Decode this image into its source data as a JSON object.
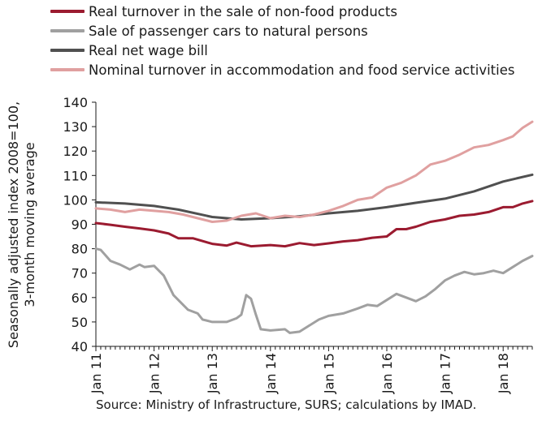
{
  "chart_data": {
    "type": "line",
    "title": "",
    "ylabel": "Seasonally adjusted index 2008=100, 3-month moving average",
    "ylabel_lines": [
      "Seasonally adjusted index 2008=100,",
      "3-month moving average"
    ],
    "xlabel": "",
    "ylim": [
      40,
      140
    ],
    "yticks": [
      40,
      50,
      60,
      70,
      80,
      90,
      100,
      110,
      120,
      130,
      140
    ],
    "x_labels": [
      "Jan 11",
      "Jan 12",
      "Jan 13",
      "Jan 14",
      "Jan 15",
      "Jan 16",
      "Jan 17",
      "Jan 18"
    ],
    "x_start": "2011-01",
    "x_end": "2018-07",
    "grid": false,
    "legend_position": "top",
    "series": [
      {
        "name": "Real turnover in the sale of non-food products",
        "color": "#9b1b30",
        "points": [
          [
            "2011-01",
            90.5
          ],
          [
            "2011-04",
            89.8
          ],
          [
            "2011-07",
            89.0
          ],
          [
            "2011-10",
            88.3
          ],
          [
            "2012-01",
            87.5
          ],
          [
            "2012-04",
            86.2
          ],
          [
            "2012-06",
            84.3
          ],
          [
            "2012-09",
            84.3
          ],
          [
            "2013-01",
            82.0
          ],
          [
            "2013-04",
            81.3
          ],
          [
            "2013-06",
            82.5
          ],
          [
            "2013-09",
            81.0
          ],
          [
            "2014-01",
            81.5
          ],
          [
            "2014-04",
            81.0
          ],
          [
            "2014-07",
            82.3
          ],
          [
            "2014-10",
            81.5
          ],
          [
            "2015-01",
            82.2
          ],
          [
            "2015-04",
            83.0
          ],
          [
            "2015-07",
            83.5
          ],
          [
            "2015-10",
            84.5
          ],
          [
            "2016-01",
            85.0
          ],
          [
            "2016-03",
            88.0
          ],
          [
            "2016-05",
            88.0
          ],
          [
            "2016-07",
            89.0
          ],
          [
            "2016-10",
            91.0
          ],
          [
            "2017-01",
            92.0
          ],
          [
            "2017-04",
            93.5
          ],
          [
            "2017-07",
            94.0
          ],
          [
            "2017-10",
            95.0
          ],
          [
            "2018-01",
            97.0
          ],
          [
            "2018-03",
            97.0
          ],
          [
            "2018-05",
            98.5
          ],
          [
            "2018-07",
            99.5
          ]
        ]
      },
      {
        "name": "Sale of passenger cars to natural persons",
        "color": "#a0a0a0",
        "points": [
          [
            "2011-01",
            80.0
          ],
          [
            "2011-02",
            79.5
          ],
          [
            "2011-04",
            75.0
          ],
          [
            "2011-06",
            73.5
          ],
          [
            "2011-08",
            71.5
          ],
          [
            "2011-10",
            73.5
          ],
          [
            "2011-11",
            72.5
          ],
          [
            "2012-01",
            73.0
          ],
          [
            "2012-03",
            69.0
          ],
          [
            "2012-05",
            61.0
          ],
          [
            "2012-08",
            55.0
          ],
          [
            "2012-10",
            53.5
          ],
          [
            "2012-11",
            51.0
          ],
          [
            "2013-01",
            50.0
          ],
          [
            "2013-04",
            50.0
          ],
          [
            "2013-06",
            51.5
          ],
          [
            "2013-07",
            53.0
          ],
          [
            "2013-08",
            61.0
          ],
          [
            "2013-09",
            59.5
          ],
          [
            "2013-10",
            53.0
          ],
          [
            "2013-11",
            47.0
          ],
          [
            "2014-01",
            46.5
          ],
          [
            "2014-04",
            47.0
          ],
          [
            "2014-05",
            45.5
          ],
          [
            "2014-07",
            46.0
          ],
          [
            "2014-09",
            48.5
          ],
          [
            "2014-11",
            51.0
          ],
          [
            "2015-01",
            52.5
          ],
          [
            "2015-04",
            53.5
          ],
          [
            "2015-07",
            55.5
          ],
          [
            "2015-09",
            57.0
          ],
          [
            "2015-11",
            56.5
          ],
          [
            "2016-01",
            59.0
          ],
          [
            "2016-03",
            61.5
          ],
          [
            "2016-05",
            60.0
          ],
          [
            "2016-07",
            58.5
          ],
          [
            "2016-09",
            60.5
          ],
          [
            "2016-11",
            63.5
          ],
          [
            "2017-01",
            67.0
          ],
          [
            "2017-03",
            69.0
          ],
          [
            "2017-05",
            70.5
          ],
          [
            "2017-07",
            69.5
          ],
          [
            "2017-09",
            70.0
          ],
          [
            "2017-11",
            71.0
          ],
          [
            "2018-01",
            70.0
          ],
          [
            "2018-03",
            72.5
          ],
          [
            "2018-05",
            75.0
          ],
          [
            "2018-07",
            77.0
          ]
        ]
      },
      {
        "name": "Real net wage bill",
        "color": "#505050",
        "points": [
          [
            "2011-01",
            99.0
          ],
          [
            "2011-07",
            98.5
          ],
          [
            "2012-01",
            97.5
          ],
          [
            "2012-06",
            96.0
          ],
          [
            "2013-01",
            93.0
          ],
          [
            "2013-07",
            92.0
          ],
          [
            "2014-01",
            92.5
          ],
          [
            "2014-07",
            93.3
          ],
          [
            "2015-01",
            94.5
          ],
          [
            "2015-07",
            95.5
          ],
          [
            "2016-01",
            97.0
          ],
          [
            "2016-07",
            98.8
          ],
          [
            "2017-01",
            100.5
          ],
          [
            "2017-07",
            103.5
          ],
          [
            "2018-01",
            107.5
          ],
          [
            "2018-07",
            110.3
          ]
        ]
      },
      {
        "name": "Nominal turnover in accommodation and food service activities",
        "color": "#e0a0a0",
        "points": [
          [
            "2011-01",
            96.5
          ],
          [
            "2011-04",
            96.0
          ],
          [
            "2011-07",
            95.0
          ],
          [
            "2011-10",
            96.0
          ],
          [
            "2012-01",
            95.5
          ],
          [
            "2012-04",
            95.0
          ],
          [
            "2012-07",
            94.0
          ],
          [
            "2012-10",
            92.5
          ],
          [
            "2013-01",
            91.0
          ],
          [
            "2013-04",
            91.5
          ],
          [
            "2013-07",
            93.5
          ],
          [
            "2013-10",
            94.5
          ],
          [
            "2014-01",
            92.5
          ],
          [
            "2014-04",
            93.5
          ],
          [
            "2014-07",
            93.0
          ],
          [
            "2014-10",
            94.0
          ],
          [
            "2015-01",
            95.5
          ],
          [
            "2015-04",
            97.5
          ],
          [
            "2015-07",
            100.0
          ],
          [
            "2015-10",
            101.0
          ],
          [
            "2016-01",
            105.0
          ],
          [
            "2016-04",
            107.0
          ],
          [
            "2016-07",
            110.0
          ],
          [
            "2016-10",
            114.5
          ],
          [
            "2017-01",
            116.0
          ],
          [
            "2017-04",
            118.5
          ],
          [
            "2017-07",
            121.5
          ],
          [
            "2017-10",
            122.5
          ],
          [
            "2018-01",
            124.5
          ],
          [
            "2018-03",
            126.0
          ],
          [
            "2018-05",
            129.5
          ],
          [
            "2018-07",
            132.0
          ]
        ]
      }
    ]
  },
  "source_text": "Source: Ministry of Infrastructure, SURS; calculations by IMAD."
}
